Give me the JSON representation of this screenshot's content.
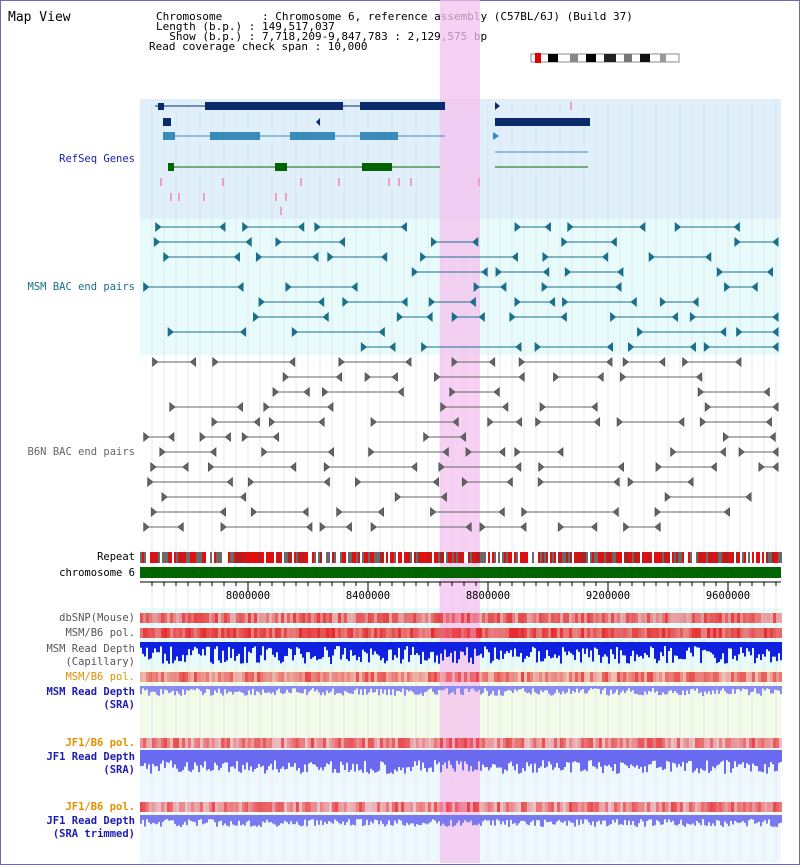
{
  "page": {
    "title": "Map View",
    "chromosome_line": "Chromosome      : Chromosome 6, reference assembly (C57BL/6J) (Build 37)",
    "length_line": "Length (b.p.) : 149,517,037",
    "show_line": "  Show (b.p.) : 7,718,209-9,847,783 : 2,129,575 bp",
    "coverage_line": "Read coverage check span : 10,000"
  },
  "tracks": {
    "refseq": "RefSeq Genes",
    "msm_bac": "MSM BAC end pairs",
    "b6n_bac": "B6N BAC end pairs",
    "repeat": "Repeat",
    "chromosome": "chromosome 6",
    "dbsnp": "dbSNP(Mouse)",
    "msm_b6_pol_1": "MSM/B6 pol.",
    "msm_depth_cap_1": "MSM Read Depth",
    "msm_depth_cap_2": "(Capillary)",
    "msm_b6_pol_2": "MSM/B6 pol.",
    "msm_depth_sra_1": "MSM Read Depth",
    "msm_depth_sra_2": "(SRA)",
    "jf1_b6_pol_1": "JF1/B6 pol.",
    "jf1_depth_sra_1": "JF1 Read Depth",
    "jf1_depth_sra_2": "(SRA)",
    "jf1_b6_pol_2": "JF1/B6 pol.",
    "jf1_depth_trim_1": "JF1 Read Depth",
    "jf1_depth_trim_2": "(SRA trimmed)"
  },
  "axis": {
    "ticks": [
      "8000000",
      "8400000",
      "8800000",
      "9200000",
      "9600000"
    ]
  },
  "colors": {
    "refseq_label": "#1c1cb0",
    "msm_label": "#1a6f8a",
    "b6n_label": "#666666",
    "pol_label": "#e09000",
    "depth_label": "#1c1cb0",
    "highlight": "#f4c2ef",
    "chromosome": "#006400"
  }
}
